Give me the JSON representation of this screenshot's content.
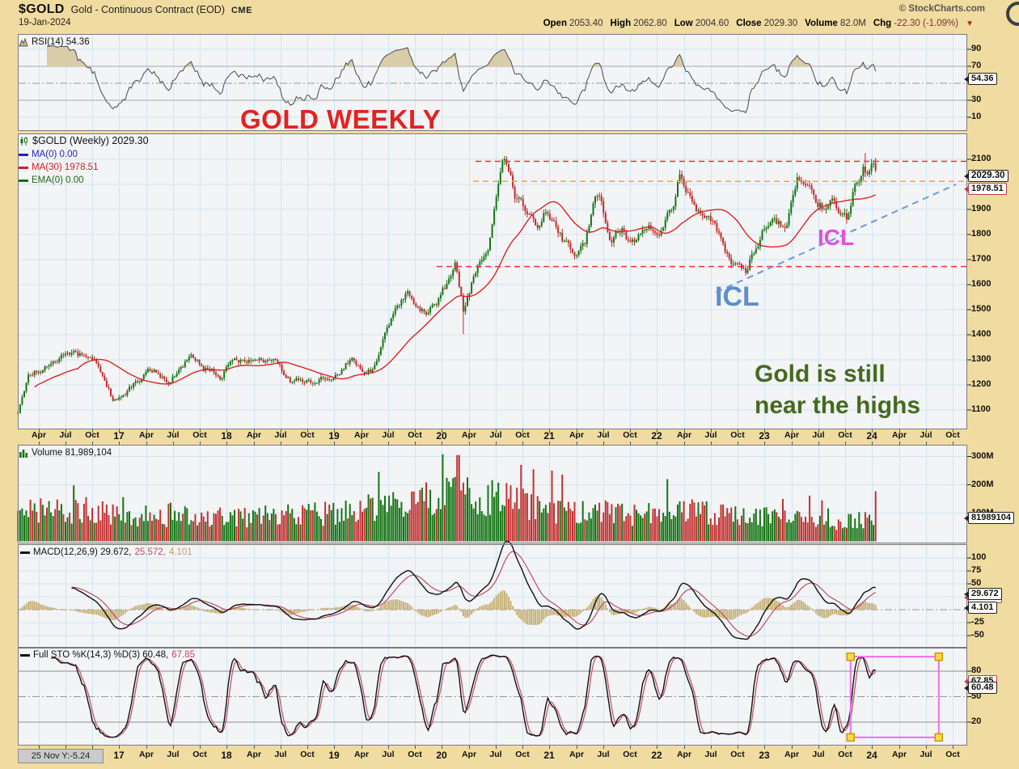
{
  "header": {
    "symbol": "$GOLD",
    "description": "Gold - Continuous Contract (EOD)",
    "exchange": "CME",
    "copyright": "© StockCharts.com",
    "date": "19-Jan-2024",
    "quote": {
      "items": [
        {
          "label": "Open",
          "value": "2053.40"
        },
        {
          "label": "High",
          "value": "2062.80"
        },
        {
          "label": "Low",
          "value": "2004.60"
        },
        {
          "label": "Close",
          "value": "2029.30"
        },
        {
          "label": "Volume",
          "value": "82.0M"
        },
        {
          "label": "Chg",
          "value": "-22.30 (-1.09%)"
        }
      ],
      "direction_arrow": "▼"
    }
  },
  "rsi_panel": {
    "legend": "RSI(14) 54.36",
    "ticks": [
      "90",
      "70",
      "50",
      "30",
      "10"
    ],
    "badge": "54.36"
  },
  "price_panel": {
    "title": "$GOLD (Weekly) 2029.30",
    "legend": [
      {
        "label": "MA(0) 0.00",
        "color": "#2222BB"
      },
      {
        "label": "MA(30) 1978.51",
        "color": "#CC2222"
      },
      {
        "label": "EMA(0) 0.00",
        "color": "#1A6B1A"
      }
    ],
    "ticks": [
      "2100",
      "1900",
      "1800",
      "1700",
      "1600",
      "1500",
      "1400",
      "1300",
      "1200",
      "1100"
    ],
    "badge_close": "2029.30",
    "badge_ma30": "1978.51",
    "annotations": {
      "headline": "GOLD WEEKLY",
      "icl_upper": "ICL",
      "icl_lower": "ICL",
      "note_line1": "Gold is still",
      "note_line2": "near the highs"
    }
  },
  "x_axis": {
    "top": [
      "Apr",
      "Jul",
      "Oct",
      "17",
      "Apr",
      "Jul",
      "Oct",
      "18",
      "Apr",
      "Jul",
      "Oct",
      "19",
      "Apr",
      "Jul",
      "Oct",
      "20",
      "Apr",
      "Jul",
      "Oct",
      "21",
      "Apr",
      "Jul",
      "Oct",
      "22",
      "Apr",
      "Jul",
      "Oct",
      "23",
      "Apr",
      "Jul",
      "Oct",
      "24",
      "Apr",
      "Jul",
      "Oct"
    ],
    "bottom": [
      "17",
      "Apr",
      "Jul",
      "Oct",
      "18",
      "Apr",
      "Jul",
      "Oct",
      "19",
      "Apr",
      "Jul",
      "Oct",
      "20",
      "Apr",
      "Jul",
      "Oct",
      "21",
      "Apr",
      "Jul",
      "Oct",
      "22",
      "Apr",
      "Jul",
      "Oct",
      "23",
      "Apr",
      "Jul",
      "Oct",
      "24",
      "Apr",
      "Jul",
      "Oct"
    ]
  },
  "volume_panel": {
    "legend": "Volume 81,989,104",
    "ticks": [
      "300M",
      "200M",
      "100M"
    ],
    "badge": "81989104"
  },
  "macd_panel": {
    "parts": [
      {
        "text": "MACD(12,26,9) 29.672,",
        "color": "#111111"
      },
      {
        "text": "25.572,",
        "color": "#BE4D62"
      },
      {
        "text": "4.101",
        "color": "#BFA070"
      }
    ],
    "ticks": [
      "100",
      "75",
      "50",
      "25",
      "0",
      "-25",
      "-50"
    ],
    "badge_macd": "29.672",
    "badge_signal": "25.572",
    "badge_hist": "4.101"
  },
  "sto_panel": {
    "parts": [
      {
        "text": "Full STO %K(14,3) %D(3) 60.48,",
        "color": "#111111"
      },
      {
        "text": "67.85",
        "color": "#BE4D62"
      }
    ],
    "ticks": [
      "80",
      "50",
      "20"
    ],
    "badge_k": "60.48",
    "badge_d": "67.85"
  },
  "footer": {
    "readout": "25 Nov Y:-5.24"
  },
  "chart_data": {
    "type": "candlestick",
    "symbol": "$GOLD",
    "timeframe": "weekly",
    "panels": [
      "RSI(14)",
      "price with MA(30)",
      "volume",
      "MACD(12,26,9)",
      "Full Stochastic %K(14,3) %D(3)"
    ],
    "last_bar": {
      "date": "19-Jan-2024",
      "open": 2053.4,
      "high": 2062.8,
      "low": 2004.6,
      "close": 2029.3,
      "volume": 81989104,
      "change": -22.3,
      "change_pct": -1.09
    },
    "indicator_values": {
      "rsi14": 54.36,
      "ma30": 1978.51,
      "macd_line": 29.672,
      "macd_signal": 25.572,
      "macd_hist": 4.101,
      "sto_k": 60.48,
      "sto_d": 67.85
    },
    "x_data_range_years": [
      2016.06,
      2024.05
    ],
    "x_axis_end_year": 2024.8,
    "price_ylim": [
      1060,
      2165
    ],
    "rsi_ylim": [
      0,
      100
    ],
    "volume_ylim_M": [
      0,
      345
    ],
    "macd_ylim": [
      -75,
      125
    ],
    "sto_ylim": [
      0,
      100
    ],
    "price_waypoints": [
      [
        2016.06,
        1090
      ],
      [
        2016.15,
        1235
      ],
      [
        2016.5,
        1360
      ],
      [
        2016.62,
        1330
      ],
      [
        2016.78,
        1310
      ],
      [
        2016.95,
        1135
      ],
      [
        2017.1,
        1200
      ],
      [
        2017.3,
        1255
      ],
      [
        2017.45,
        1240
      ],
      [
        2017.68,
        1350
      ],
      [
        2017.78,
        1280
      ],
      [
        2017.95,
        1255
      ],
      [
        2018.05,
        1320
      ],
      [
        2018.3,
        1340
      ],
      [
        2018.45,
        1300
      ],
      [
        2018.62,
        1195
      ],
      [
        2018.75,
        1200
      ],
      [
        2018.95,
        1250
      ],
      [
        2019.15,
        1320
      ],
      [
        2019.35,
        1275
      ],
      [
        2019.5,
        1410
      ],
      [
        2019.67,
        1540
      ],
      [
        2019.75,
        1500
      ],
      [
        2019.87,
        1470
      ],
      [
        2020.0,
        1560
      ],
      [
        2020.13,
        1670
      ],
      [
        2020.2,
        1495
      ],
      [
        2020.3,
        1630
      ],
      [
        2020.42,
        1735
      ],
      [
        2020.56,
        2040
      ],
      [
        2020.6,
        2060
      ],
      [
        2020.68,
        1940
      ],
      [
        2020.8,
        1900
      ],
      [
        2020.92,
        1840
      ],
      [
        2020.98,
        1890
      ],
      [
        2021.1,
        1830
      ],
      [
        2021.2,
        1730
      ],
      [
        2021.33,
        1745
      ],
      [
        2021.42,
        1890
      ],
      [
        2021.48,
        1900
      ],
      [
        2021.58,
        1765
      ],
      [
        2021.67,
        1815
      ],
      [
        2021.73,
        1755
      ],
      [
        2021.83,
        1790
      ],
      [
        2021.95,
        1805
      ],
      [
        2022.05,
        1840
      ],
      [
        2022.15,
        1900
      ],
      [
        2022.2,
        2040
      ],
      [
        2022.3,
        1945
      ],
      [
        2022.42,
        1900
      ],
      [
        2022.53,
        1845
      ],
      [
        2022.62,
        1740
      ],
      [
        2022.72,
        1680
      ],
      [
        2022.83,
        1645
      ],
      [
        2022.92,
        1750
      ],
      [
        2023.0,
        1830
      ],
      [
        2023.08,
        1925
      ],
      [
        2023.16,
        1870
      ],
      [
        2023.2,
        1840
      ],
      [
        2023.3,
        2015
      ],
      [
        2023.38,
        1980
      ],
      [
        2023.45,
        1965
      ],
      [
        2023.55,
        1920
      ],
      [
        2023.62,
        1940
      ],
      [
        2023.7,
        1865
      ],
      [
        2023.77,
        1830
      ],
      [
        2023.85,
        1990
      ],
      [
        2023.92,
        2060
      ],
      [
        2023.96,
        2045
      ],
      [
        2024.0,
        2060
      ],
      [
        2024.03,
        2050
      ],
      [
        2024.05,
        2029.3
      ]
    ],
    "volume_waypoints_M": [
      [
        2016.06,
        100
      ],
      [
        2016.6,
        115
      ],
      [
        2017.0,
        90
      ],
      [
        2017.5,
        88
      ],
      [
        2018.0,
        85
      ],
      [
        2018.6,
        95
      ],
      [
        2019.0,
        100
      ],
      [
        2019.5,
        125
      ],
      [
        2019.8,
        135
      ],
      [
        2020.0,
        150
      ],
      [
        2020.15,
        170
      ],
      [
        2020.35,
        150
      ],
      [
        2020.6,
        150
      ],
      [
        2020.85,
        120
      ],
      [
        2021.2,
        105
      ],
      [
        2021.6,
        95
      ],
      [
        2022.0,
        95
      ],
      [
        2022.3,
        105
      ],
      [
        2022.7,
        90
      ],
      [
        2023.0,
        88
      ],
      [
        2023.4,
        75
      ],
      [
        2023.8,
        72
      ],
      [
        2024.05,
        80
      ]
    ],
    "overlays": {
      "dashed_red_resistance_level": 2092,
      "dashed_orange_level": 2012,
      "dashed_red_support_level": 1672,
      "blue_trendline": {
        "t1": 2022.55,
        "p1": 1570,
        "t2": 2024.78,
        "p2": 2000
      },
      "sto_selection_rect": {
        "t1": 2023.8,
        "t2": 2024.62,
        "lo": 2,
        "hi": 97
      }
    },
    "seed": 11
  }
}
